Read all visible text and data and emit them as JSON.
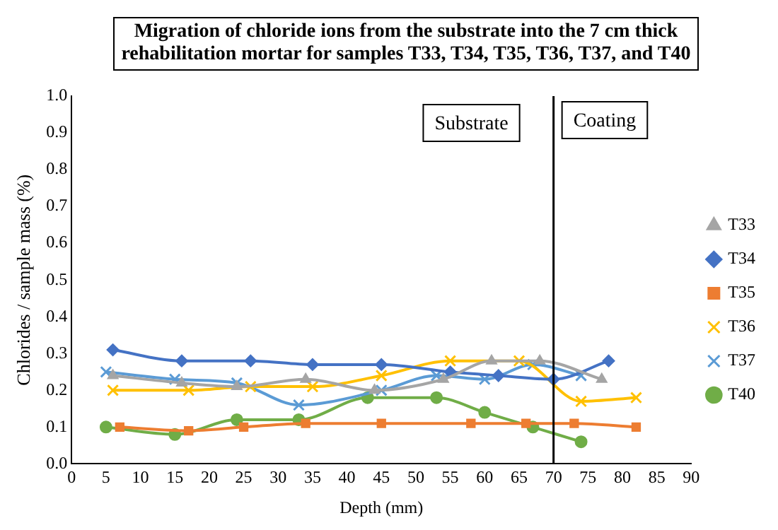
{
  "chart_data": {
    "type": "line",
    "title": "Migration of chloride ions from the substrate into the 7 cm thick rehabilitation mortar for samples T33, T34, T35, T36, T37, and T40",
    "xlabel": "Depth (mm)",
    "ylabel": "Chlorides / sample mass (%)",
    "xlim": [
      0,
      90
    ],
    "xticks": [
      0,
      5,
      10,
      15,
      20,
      25,
      30,
      35,
      40,
      45,
      50,
      55,
      60,
      65,
      70,
      75,
      80,
      85,
      90
    ],
    "ylim": [
      0,
      1
    ],
    "yticks": [
      {
        "value": 0,
        "label": "0.0"
      },
      {
        "value": 0.1,
        "label": "0.1"
      },
      {
        "value": 0.2,
        "label": "0.2"
      },
      {
        "value": 0.3,
        "label": "0.3"
      },
      {
        "value": 0.4,
        "label": "0.4"
      },
      {
        "value": 0.5,
        "label": "0.5"
      },
      {
        "value": 0.6,
        "label": "0.6"
      },
      {
        "value": 0.7,
        "label": "0.7"
      },
      {
        "value": 0.8,
        "label": "0.8"
      },
      {
        "value": 0.9,
        "label": "0.9"
      },
      {
        "value": 1,
        "label": "1.0"
      }
    ],
    "grid": false,
    "legend": "right",
    "line_style": "solid",
    "series": [
      {
        "name": "T33",
        "color": "#a5a5a5",
        "marker": "triangle",
        "x": [
          6,
          16,
          24,
          34,
          44,
          54,
          61,
          68,
          77
        ],
        "values": [
          0.24,
          0.22,
          0.21,
          0.23,
          0.2,
          0.23,
          0.28,
          0.28,
          0.23
        ]
      },
      {
        "name": "T34",
        "color": "#4472c4",
        "marker": "diamond",
        "x": [
          6,
          16,
          26,
          35,
          45,
          55,
          62,
          70,
          78
        ],
        "values": [
          0.31,
          0.28,
          0.28,
          0.27,
          0.27,
          0.25,
          0.24,
          0.23,
          0.28
        ]
      },
      {
        "name": "T35",
        "color": "#ed7d31",
        "marker": "square",
        "x": [
          7,
          17,
          25,
          34,
          45,
          58,
          66,
          73,
          82
        ],
        "values": [
          0.1,
          0.09,
          0.1,
          0.11,
          0.11,
          0.11,
          0.11,
          0.11,
          0.1
        ]
      },
      {
        "name": "T36",
        "color": "#ffc000",
        "marker": "cross",
        "x": [
          6,
          17,
          26,
          35,
          45,
          55,
          65,
          74,
          82
        ],
        "values": [
          0.2,
          0.2,
          0.21,
          0.21,
          0.24,
          0.28,
          0.28,
          0.17,
          0.18
        ]
      },
      {
        "name": "T37",
        "color": "#5b9bd5",
        "marker": "cross",
        "x": [
          5,
          15,
          24,
          33,
          45,
          53,
          60,
          67,
          74
        ],
        "values": [
          0.25,
          0.23,
          0.22,
          0.16,
          0.2,
          0.24,
          0.23,
          0.27,
          0.24
        ]
      },
      {
        "name": "T40",
        "color": "#70ad47",
        "marker": "circle",
        "x": [
          5,
          15,
          24,
          33,
          43,
          53,
          60,
          67,
          74
        ],
        "values": [
          0.1,
          0.08,
          0.12,
          0.12,
          0.18,
          0.18,
          0.14,
          0.1,
          0.06
        ]
      }
    ],
    "ref_lines": [
      {
        "axis": "x",
        "value": 70,
        "color": "#000000"
      }
    ],
    "annotations": [
      "Substrate",
      "Coating"
    ]
  }
}
